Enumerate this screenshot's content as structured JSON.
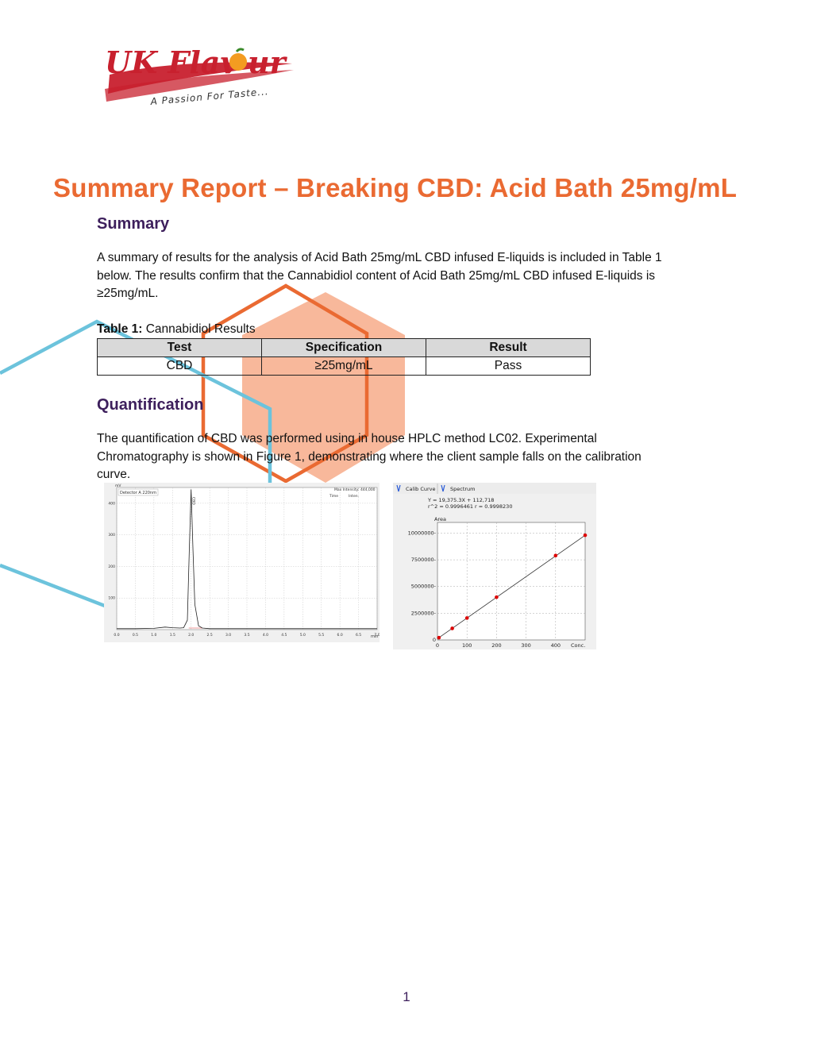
{
  "logo": {
    "brand": "UK Flavour",
    "tagline": "A Passion For Taste..."
  },
  "title": "Summary Report – Breaking CBD: Acid Bath 25mg/mL",
  "summary": {
    "heading": "Summary",
    "text": "A summary of results for the analysis of Acid Bath 25mg/mL CBD infused E-liquids is included in Table 1 below. The results confirm that the Cannabidiol content of Acid Bath 25mg/mL CBD infused E-liquids is ≥25mg/mL."
  },
  "table1": {
    "caption_label": "Table 1:",
    "caption_text": " Cannabidiol Results",
    "headers": [
      "Test",
      "Specification",
      "Result"
    ],
    "rows": [
      [
        "CBD",
        "≥25mg/mL",
        "Pass"
      ]
    ]
  },
  "quantification": {
    "heading": "Quantification",
    "text": "The quantification of CBD was performed using in house HPLC method LC02. Experimental Chromatography is shown in Figure 1, demonstrating where the client sample falls on the calibration curve."
  },
  "chart_data": [
    {
      "type": "line",
      "title": "",
      "detector_label": "Detector A 220nm",
      "max_intensity_label": "Max Intensity: 444,000",
      "header_labels": [
        "Time",
        "Inten."
      ],
      "xlabel": "min",
      "ylabel": "mV",
      "xlim": [
        0.0,
        7.0
      ],
      "ylim": [
        0,
        450
      ],
      "x_ticks": [
        "0.0",
        "0.5",
        "1.0",
        "1.5",
        "2.0",
        "2.5",
        "3.0",
        "3.5",
        "4.0",
        "4.5",
        "5.0",
        "5.5",
        "6.0",
        "6.5",
        "7.0"
      ],
      "y_ticks": [
        "100",
        "200",
        "300",
        "400"
      ],
      "peak_label": "CBD",
      "series": [
        {
          "x": [
            0.0,
            0.5,
            1.0,
            1.3,
            1.5,
            1.7,
            1.8,
            1.9,
            1.95,
            2.0,
            2.05,
            2.1,
            2.2,
            2.3,
            2.5,
            3.0,
            4.0,
            5.0,
            6.0,
            7.0
          ],
          "y": [
            3,
            3,
            4,
            8,
            6,
            5,
            6,
            30,
            250,
            444,
            250,
            80,
            12,
            5,
            3,
            3,
            3,
            3,
            3,
            3
          ]
        }
      ],
      "grid": true
    },
    {
      "type": "scatter",
      "tabs": [
        "Calib Curve",
        "Spectrum"
      ],
      "equation": "Y = 19,375.3X + 112,718",
      "r_values": "r^2 = 0.9996461   r = 0.9998230",
      "ylabel": "Area",
      "xlabel": "Conc.",
      "xlim": [
        0,
        500
      ],
      "ylim": [
        0,
        11000000
      ],
      "x_ticks": [
        0,
        100,
        200,
        300,
        400
      ],
      "y_ticks": [
        0,
        2500000,
        5000000,
        7500000,
        10000000
      ],
      "y_tick_labels": [
        "0",
        "2500000",
        "5000000",
        "7500000",
        "10000000"
      ],
      "points": [
        {
          "x": 5,
          "y": 210000
        },
        {
          "x": 50,
          "y": 1080000
        },
        {
          "x": 100,
          "y": 2050000
        },
        {
          "x": 200,
          "y": 4000000
        },
        {
          "x": 400,
          "y": 7900000
        },
        {
          "x": 500,
          "y": 9800000
        }
      ],
      "fit_line": {
        "x": [
          0,
          500
        ],
        "y": [
          112718,
          9800368
        ]
      },
      "grid": true
    }
  ],
  "page_number": "1",
  "colors": {
    "title": "#ea6a32",
    "heading": "#3d1f5c",
    "hexagon_fill": "#f5a07a",
    "hexagon_outline": "#ea6a32",
    "blue_line": "#6cc3dc",
    "logo_red": "#c8202e",
    "orange_fruit": "#f39c21",
    "calib_point": "#dd0000"
  }
}
